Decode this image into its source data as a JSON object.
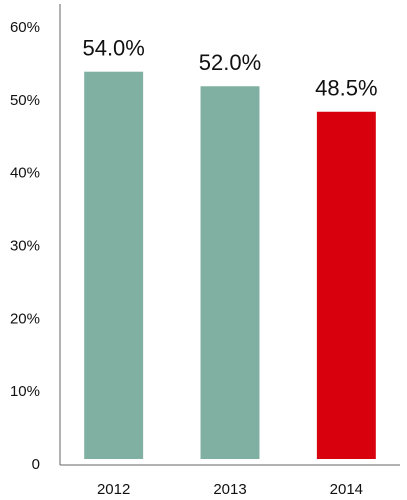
{
  "chart_data": {
    "type": "bar",
    "categories": [
      "2012",
      "2013",
      "2014"
    ],
    "values": [
      54.0,
      52.0,
      48.5
    ],
    "value_labels": [
      "54.0%",
      "52.0%",
      "48.5%"
    ],
    "colors": [
      "#7fb0a2",
      "#7fb0a2",
      "#d9000d"
    ],
    "ylim": [
      0,
      60
    ],
    "yticks": [
      0,
      {
        "value": 10,
        "label": "10%"
      },
      {
        "value": 20,
        "label": "20%"
      },
      {
        "value": 30,
        "label": "30%"
      },
      {
        "value": 40,
        "label": "40%"
      },
      {
        "value": 50,
        "label": "50%"
      },
      {
        "value": 60,
        "label": "60%"
      }
    ],
    "grid": false
  }
}
